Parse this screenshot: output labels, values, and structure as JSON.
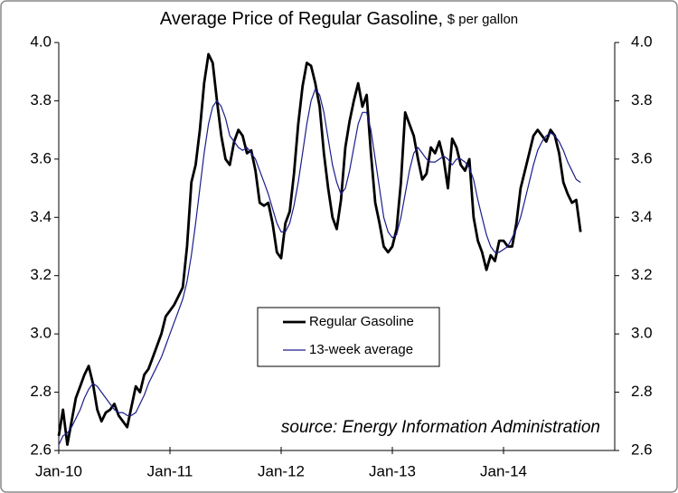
{
  "chart_data": {
    "type": "line",
    "title": "Average Price of Regular Gasoline,",
    "subtitle": "$ per gallon",
    "annotation": "source: Energy Information Administration",
    "categories": [
      "Jan-10",
      null,
      null,
      null,
      null,
      null,
      null,
      null,
      null,
      null,
      null,
      null,
      null,
      null,
      null,
      null,
      null,
      null,
      null,
      null,
      null,
      null,
      null,
      null,
      null,
      null,
      "Jan-11",
      null,
      null,
      null,
      null,
      null,
      null,
      null,
      null,
      null,
      null,
      null,
      null,
      null,
      null,
      null,
      null,
      null,
      null,
      null,
      null,
      null,
      null,
      null,
      null,
      null,
      "Jan-12",
      null,
      null,
      null,
      null,
      null,
      null,
      null,
      null,
      null,
      null,
      null,
      null,
      null,
      null,
      null,
      null,
      null,
      null,
      null,
      null,
      null,
      null,
      null,
      null,
      null,
      "Jan-13",
      null,
      null,
      null,
      null,
      null,
      null,
      null,
      null,
      null,
      null,
      null,
      null,
      null,
      null,
      null,
      null,
      null,
      null,
      null,
      null,
      null,
      null,
      null,
      null,
      null,
      "Jan-14",
      null,
      null,
      null,
      null,
      null,
      null,
      null,
      null,
      null,
      null,
      null,
      null,
      null,
      null,
      null,
      null,
      null,
      null,
      null,
      null,
      null,
      null,
      null,
      null,
      null
    ],
    "series": [
      {
        "name": "Regular Gasoline",
        "color": "#000000",
        "values": [
          2.65,
          2.74,
          2.62,
          2.7,
          2.78,
          2.82,
          2.86,
          2.89,
          2.83,
          2.74,
          2.7,
          2.73,
          2.74,
          2.76,
          2.72,
          2.7,
          2.68,
          2.75,
          2.82,
          2.8,
          2.86,
          2.88,
          2.92,
          2.96,
          3.0,
          3.06,
          3.08,
          3.1,
          3.13,
          3.16,
          3.3,
          3.52,
          3.58,
          3.7,
          3.86,
          3.96,
          3.93,
          3.8,
          3.68,
          3.6,
          3.58,
          3.66,
          3.7,
          3.68,
          3.62,
          3.63,
          3.56,
          3.45,
          3.44,
          3.45,
          3.38,
          3.28,
          3.26,
          3.38,
          3.42,
          3.55,
          3.72,
          3.85,
          3.93,
          3.92,
          3.86,
          3.78,
          3.62,
          3.5,
          3.4,
          3.36,
          3.46,
          3.64,
          3.73,
          3.8,
          3.86,
          3.78,
          3.82,
          3.62,
          3.45,
          3.38,
          3.3,
          3.28,
          3.3,
          3.36,
          3.52,
          3.76,
          3.72,
          3.68,
          3.6,
          3.53,
          3.55,
          3.64,
          3.62,
          3.66,
          3.6,
          3.5,
          3.67,
          3.64,
          3.58,
          3.56,
          3.6,
          3.4,
          3.32,
          3.28,
          3.22,
          3.27,
          3.25,
          3.32,
          3.32,
          3.3,
          3.3,
          3.38,
          3.5,
          3.56,
          3.62,
          3.68,
          3.7,
          3.68,
          3.66,
          3.7,
          3.68,
          3.62,
          3.52,
          3.48,
          3.45,
          3.46,
          3.35,
          null,
          null,
          null,
          null,
          null,
          null,
          null
        ]
      },
      {
        "name": "13-week average",
        "color": "#1c1c8c",
        "values": [
          2.62,
          2.65,
          2.66,
          2.68,
          2.71,
          2.74,
          2.78,
          2.81,
          2.83,
          2.82,
          2.8,
          2.78,
          2.76,
          2.74,
          2.73,
          2.73,
          2.72,
          2.72,
          2.73,
          2.76,
          2.79,
          2.83,
          2.86,
          2.89,
          2.92,
          2.96,
          3.0,
          3.04,
          3.08,
          3.12,
          3.18,
          3.27,
          3.38,
          3.5,
          3.62,
          3.72,
          3.78,
          3.8,
          3.78,
          3.74,
          3.68,
          3.66,
          3.64,
          3.63,
          3.64,
          3.62,
          3.6,
          3.56,
          3.52,
          3.48,
          3.43,
          3.38,
          3.35,
          3.35,
          3.38,
          3.44,
          3.52,
          3.62,
          3.72,
          3.8,
          3.84,
          3.82,
          3.76,
          3.67,
          3.58,
          3.52,
          3.48,
          3.5,
          3.56,
          3.64,
          3.72,
          3.76,
          3.76,
          3.7,
          3.6,
          3.5,
          3.4,
          3.35,
          3.33,
          3.34,
          3.4,
          3.48,
          3.56,
          3.62,
          3.64,
          3.62,
          3.6,
          3.59,
          3.59,
          3.6,
          3.61,
          3.6,
          3.58,
          3.6,
          3.6,
          3.59,
          3.57,
          3.53,
          3.46,
          3.4,
          3.34,
          3.3,
          3.28,
          3.28,
          3.29,
          3.3,
          3.33,
          3.36,
          3.4,
          3.46,
          3.52,
          3.58,
          3.63,
          3.66,
          3.68,
          3.69,
          3.68,
          3.66,
          3.63,
          3.59,
          3.56,
          3.53,
          3.52,
          null,
          null,
          null,
          null,
          null,
          null,
          null
        ]
      }
    ],
    "ylim": [
      2.6,
      4.0
    ],
    "yticks": [
      2.6,
      2.8,
      {
        "value": 3.0,
        "label": "3.0"
      },
      3.2,
      3.4,
      3.6,
      3.8,
      {
        "value": 4.0,
        "label": "4.0"
      }
    ],
    "y2lim": [
      2.6,
      4.0
    ],
    "y2ticks": [
      2.6,
      2.8,
      {
        "value": 3.0,
        "label": "3.0"
      },
      3.2,
      3.4,
      3.6,
      3.8,
      {
        "value": 4.0,
        "label": "4.0"
      }
    ],
    "grid": false,
    "legend": "center"
  }
}
